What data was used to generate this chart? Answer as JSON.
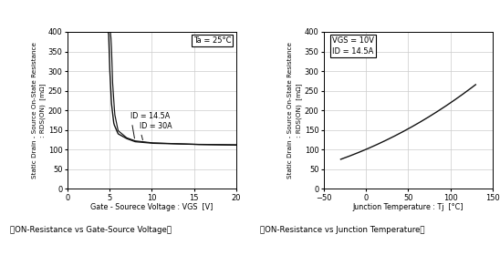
{
  "chart1": {
    "title_box": "Ta = 25°C",
    "xlabel": "Gate - Sourece Voltage : VGS  [V]",
    "ylabel": "Static Drain - Source On-State Resistance\n: RDS(ON)  [mΩ]",
    "ylim": [
      0,
      400
    ],
    "xlim": [
      0,
      20
    ],
    "yticks": [
      0,
      50,
      100,
      150,
      200,
      250,
      300,
      350,
      400
    ],
    "xticks": [
      0,
      5,
      10,
      15,
      20
    ],
    "label1": "ID = 14.5A",
    "label2": "ID = 30A",
    "caption": "《ON-Resistance vs Gate-Source Voltage》"
  },
  "chart2": {
    "annotation_line1": "VGS = 10V",
    "annotation_line2": "ID = 14.5A",
    "xlabel": "Junction Temperature : Tj  [°C]",
    "ylabel": "Static Drain - Source On-State Resistance\n: RDS(ON)  [mΩ]",
    "ylim": [
      0,
      400
    ],
    "xlim": [
      -50,
      150
    ],
    "yticks": [
      0,
      50,
      100,
      150,
      200,
      250,
      300,
      350,
      400
    ],
    "xticks": [
      -50,
      0,
      50,
      100,
      150
    ],
    "caption": "《ON-Resistance vs Junction Temperature》"
  },
  "grid_color": "#cccccc",
  "line_color": "#111111",
  "bg_color": "#ffffff"
}
